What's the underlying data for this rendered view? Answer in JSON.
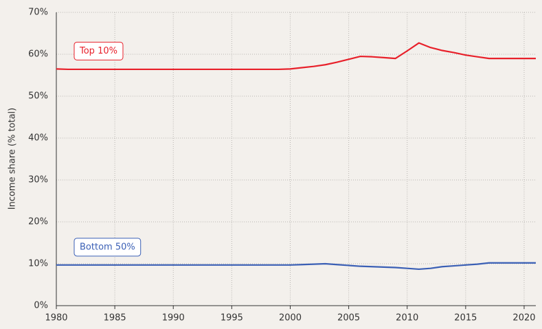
{
  "chart_data": {
    "type": "line",
    "y_label": "Income share (% total)",
    "x": [
      1980,
      1981,
      1982,
      1983,
      1984,
      1985,
      1986,
      1987,
      1988,
      1989,
      1990,
      1991,
      1992,
      1993,
      1994,
      1995,
      1996,
      1997,
      1998,
      1999,
      2000,
      2001,
      2002,
      2003,
      2004,
      2005,
      2006,
      2007,
      2008,
      2009,
      2010,
      2011,
      2012,
      2013,
      2014,
      2015,
      2016,
      2017,
      2018,
      2019,
      2020,
      2021
    ],
    "series": [
      {
        "name": "Top 10%",
        "color": "#e8202a",
        "values": [
          56.5,
          56.4,
          56.4,
          56.4,
          56.4,
          56.4,
          56.4,
          56.4,
          56.4,
          56.4,
          56.4,
          56.4,
          56.4,
          56.4,
          56.4,
          56.4,
          56.4,
          56.4,
          56.4,
          56.4,
          56.5,
          56.8,
          57.1,
          57.5,
          58.1,
          58.8,
          59.5,
          59.4,
          59.2,
          59.0,
          60.8,
          62.7,
          61.6,
          60.9,
          60.4,
          59.8,
          59.4,
          59.0,
          59.0,
          59.0,
          59.0,
          59.0
        ]
      },
      {
        "name": "Bottom 50%",
        "color": "#3a5fb5",
        "values": [
          9.7,
          9.7,
          9.7,
          9.7,
          9.7,
          9.7,
          9.7,
          9.7,
          9.7,
          9.7,
          9.7,
          9.7,
          9.7,
          9.7,
          9.7,
          9.7,
          9.7,
          9.7,
          9.7,
          9.7,
          9.7,
          9.8,
          9.9,
          10.0,
          9.8,
          9.6,
          9.4,
          9.3,
          9.2,
          9.1,
          8.9,
          8.7,
          8.9,
          9.3,
          9.5,
          9.7,
          9.9,
          10.2,
          10.2,
          10.2,
          10.2,
          10.2
        ]
      }
    ],
    "xlim": [
      1980,
      2021
    ],
    "xticks": [
      1980,
      1985,
      1990,
      1995,
      2000,
      2005,
      2010,
      2015,
      2020
    ],
    "ylim": [
      0,
      70
    ],
    "yticks": [
      {
        "value": 0,
        "label": "0%"
      },
      {
        "value": 10,
        "label": "10%"
      },
      {
        "value": 20,
        "label": "20%"
      },
      {
        "value": 30,
        "label": "30%"
      },
      {
        "value": 40,
        "label": "40%"
      },
      {
        "value": 50,
        "label": "50%"
      },
      {
        "value": 60,
        "label": "60%"
      },
      {
        "value": 70,
        "label": "70%"
      }
    ],
    "grid": true
  }
}
